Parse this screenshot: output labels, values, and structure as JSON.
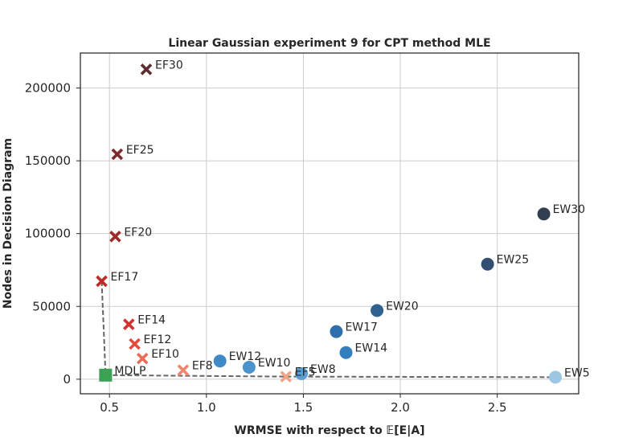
{
  "chart_data": {
    "type": "scatter",
    "title": "Linear Gaussian experiment 9 for CPT method MLE",
    "xlabel": "WRMSE with respect to 𝔼[E|A]",
    "ylabel": "Nodes in Decision Diagram",
    "xlim": [
      0.35,
      2.92
    ],
    "ylim": [
      -10000,
      224000
    ],
    "xticks": [
      0.5,
      1.0,
      1.5,
      2.0,
      2.5
    ],
    "xtick_labels": [
      "0.5",
      "1.0",
      "1.5",
      "2.0",
      "2.5"
    ],
    "yticks": [
      0,
      50000,
      100000,
      150000,
      200000
    ],
    "ytick_labels": [
      "0",
      "50000",
      "100000",
      "150000",
      "200000"
    ],
    "grid": true,
    "legend": "none",
    "series": [
      {
        "marker": "x",
        "points": [
          {
            "label": "EF5",
            "x": 1.41,
            "y": 1800,
            "color": "#f4a284"
          },
          {
            "label": "EF8",
            "x": 0.88,
            "y": 6200,
            "color": "#f0856d"
          },
          {
            "label": "EF10",
            "x": 0.67,
            "y": 14200,
            "color": "#ec6a56"
          },
          {
            "label": "EF12",
            "x": 0.63,
            "y": 24200,
            "color": "#e04b3d"
          },
          {
            "label": "EF14",
            "x": 0.6,
            "y": 37700,
            "color": "#d1322f"
          },
          {
            "label": "EF17",
            "x": 0.46,
            "y": 67300,
            "color": "#bd2a2a"
          },
          {
            "label": "EF20",
            "x": 0.53,
            "y": 98000,
            "color": "#9c2b2b"
          },
          {
            "label": "EF25",
            "x": 0.54,
            "y": 154500,
            "color": "#7c2c2c"
          },
          {
            "label": "EF30",
            "x": 0.69,
            "y": 212800,
            "color": "#5c2e31"
          }
        ]
      },
      {
        "marker": "circle",
        "points": [
          {
            "label": "EW5",
            "x": 2.8,
            "y": 1400,
            "color": "#9dc6e2"
          },
          {
            "label": "EW8",
            "x": 1.49,
            "y": 3800,
            "color": "#5aa0d4"
          },
          {
            "label": "EW10",
            "x": 1.22,
            "y": 8200,
            "color": "#4a93cc"
          },
          {
            "label": "EW12",
            "x": 1.07,
            "y": 12500,
            "color": "#3f89c6"
          },
          {
            "label": "EW14",
            "x": 1.72,
            "y": 18300,
            "color": "#337ebc"
          },
          {
            "label": "EW17",
            "x": 1.67,
            "y": 32700,
            "color": "#2d70ac"
          },
          {
            "label": "EW20",
            "x": 1.88,
            "y": 47200,
            "color": "#2f6291"
          },
          {
            "label": "EW25",
            "x": 2.45,
            "y": 79000,
            "color": "#324f71"
          },
          {
            "label": "EW30",
            "x": 2.74,
            "y": 113500,
            "color": "#323f51"
          }
        ]
      },
      {
        "marker": "square",
        "points": [
          {
            "label": "MDLP",
            "x": 0.48,
            "y": 2800,
            "color": "#3ba155"
          }
        ]
      }
    ],
    "frontier": {
      "style": "dashed",
      "color": "#666666",
      "points": [
        {
          "x": 0.46,
          "y": 67300
        },
        {
          "x": 0.48,
          "y": 2800
        },
        {
          "x": 1.41,
          "y": 1800
        },
        {
          "x": 2.8,
          "y": 1400
        }
      ]
    }
  }
}
